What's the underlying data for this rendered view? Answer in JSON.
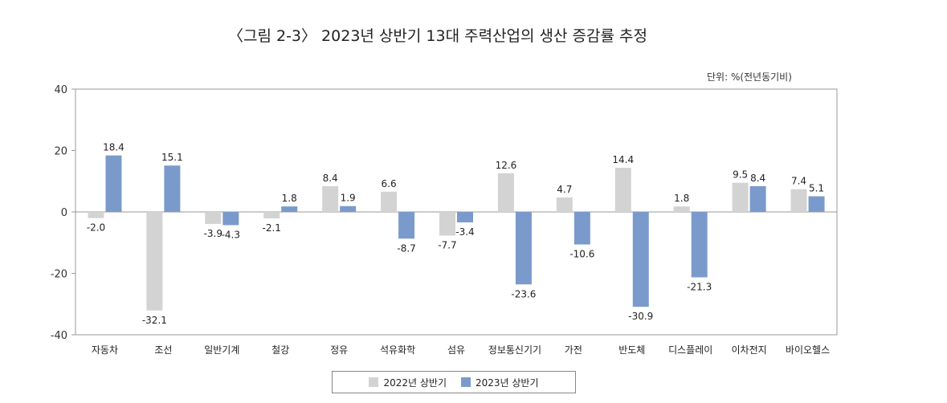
{
  "chart_data": {
    "type": "bar",
    "title": "〈그림 2-3〉 2023년 상반기 13대 주력산업의 생산 증감률 추정",
    "unit_label": "단위: %(전년동기비)",
    "xlabel": "",
    "ylabel": "",
    "ylim": [
      -40,
      40
    ],
    "yticks": [
      "40",
      "20",
      "0",
      "-20",
      "-40"
    ],
    "ytick_values": [
      40,
      20,
      0,
      -20,
      -40
    ],
    "legend_position": "bottom-center",
    "categories": [
      "자동차",
      "조선",
      "일반기계",
      "철강",
      "정유",
      "석유화학",
      "섬유",
      "정보통신기기",
      "가전",
      "반도체",
      "디스플레이",
      "이차전지",
      "바이오헬스"
    ],
    "series": [
      {
        "name": "2022년 상반기",
        "color": "#d3d3d3",
        "values": [
          -2.0,
          -32.1,
          -3.9,
          -2.1,
          8.4,
          6.6,
          -7.7,
          12.6,
          4.7,
          14.4,
          1.8,
          9.5,
          7.4
        ],
        "labels": [
          "-2.0",
          "-32.1",
          "-3.9",
          "-2.1",
          "8.4",
          "6.6",
          "-7.7",
          "12.6",
          "4.7",
          "14.4",
          "1.8",
          "9.5",
          "7.4"
        ]
      },
      {
        "name": "2023년 상반기",
        "color": "#7b9acc",
        "values": [
          18.4,
          15.1,
          -4.3,
          1.8,
          1.9,
          -8.7,
          -3.4,
          -23.6,
          -10.6,
          -30.9,
          -21.3,
          8.4,
          5.1
        ],
        "labels": [
          "18.4",
          "15.1",
          "-4.3",
          "1.8",
          "1.9",
          "-8.7",
          "-3.4",
          "-23.6",
          "-10.6",
          "-30.9",
          "-21.3",
          "8.4",
          "5.1"
        ]
      }
    ]
  }
}
